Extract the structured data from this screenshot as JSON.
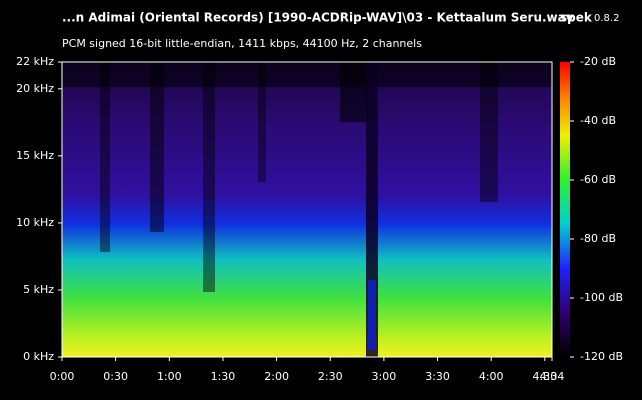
{
  "chart_data": {
    "type": "spectrogram",
    "title": "...n Adimai (Oriental Records) [1990-ACDRip-WAV]\\03 - Kettaalum Seru.wav",
    "app_name": "spek",
    "app_version": "0.8.2",
    "subtitle": "PCM signed 16-bit little-endian, 1411 kbps, 44100 Hz, 2 channels",
    "xlim": [
      0,
      274
    ],
    "xticks": [
      {
        "value": 0,
        "label": "0:00"
      },
      {
        "value": 30,
        "label": "0:30"
      },
      {
        "value": 60,
        "label": "1:00"
      },
      {
        "value": 90,
        "label": "1:30"
      },
      {
        "value": 120,
        "label": "2:00"
      },
      {
        "value": 150,
        "label": "2:30"
      },
      {
        "value": 180,
        "label": "3:00"
      },
      {
        "value": 210,
        "label": "3:30"
      },
      {
        "value": 240,
        "label": "4:00"
      },
      {
        "value": 270,
        "label": "4:30"
      },
      {
        "value": 274,
        "label": "4:34"
      }
    ],
    "ylim": [
      0,
      22
    ],
    "yticks": [
      {
        "value": 0,
        "label": "0 kHz"
      },
      {
        "value": 5,
        "label": "5 kHz"
      },
      {
        "value": 10,
        "label": "10 kHz"
      },
      {
        "value": 15,
        "label": "15 kHz"
      },
      {
        "value": 20,
        "label": "20 kHz"
      },
      {
        "value": 22,
        "label": "22 kHz"
      }
    ],
    "colorbar": {
      "lim": [
        -120,
        -20
      ],
      "ticks": [
        {
          "value": -20,
          "label": "-20 dB"
        },
        {
          "value": -40,
          "label": "-40 dB"
        },
        {
          "value": -60,
          "label": "-60 dB"
        },
        {
          "value": -80,
          "label": "-80 dB"
        },
        {
          "value": -100,
          "label": "-100 dB"
        },
        {
          "value": -120,
          "label": "-120 dB"
        }
      ]
    }
  }
}
